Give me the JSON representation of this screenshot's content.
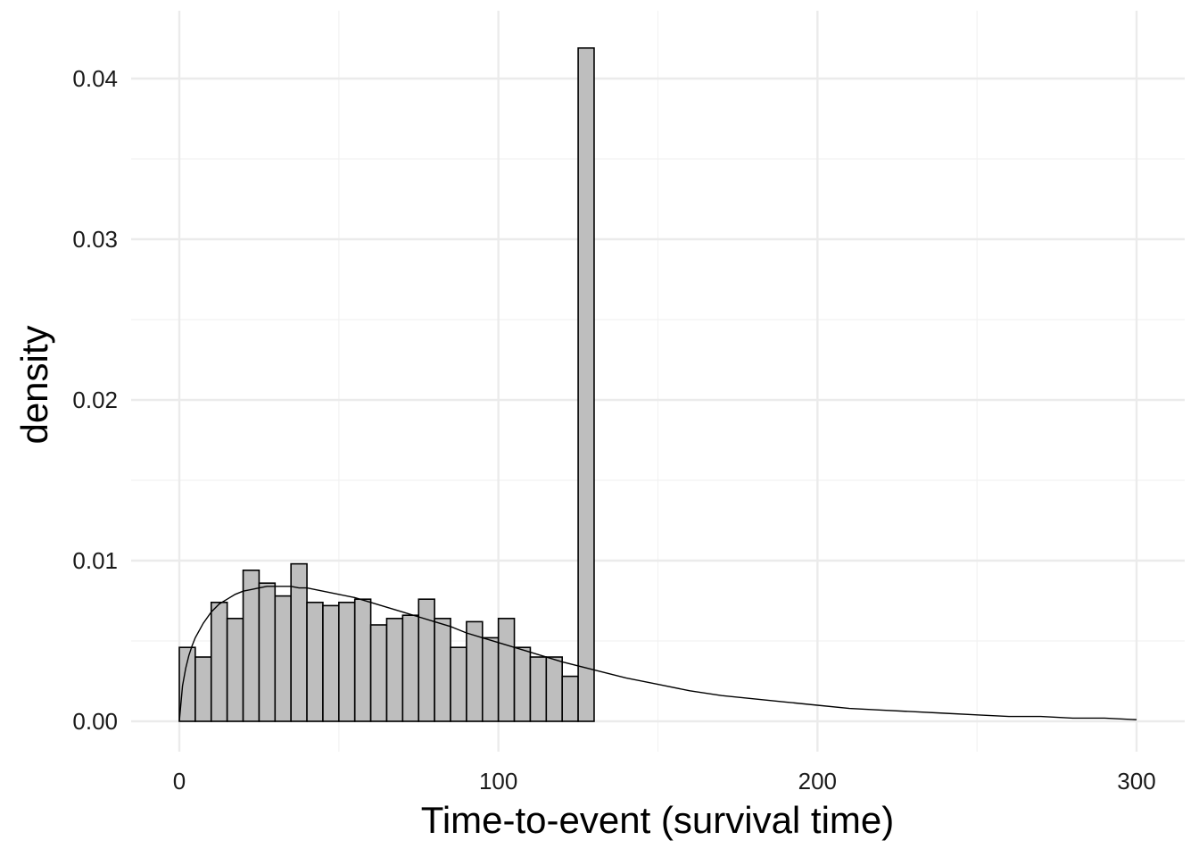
{
  "chart_data": {
    "type": "bar",
    "title": "",
    "xlabel": "Time-to-event (survival time)",
    "ylabel": "density",
    "xlim": [
      0,
      300
    ],
    "ylim": [
      0,
      0.042
    ],
    "x_ticks": [
      0,
      100,
      200,
      300
    ],
    "x_tick_labels": [
      "0",
      "100",
      "200",
      "300"
    ],
    "y_ticks": [
      0,
      0.01,
      0.02,
      0.03,
      0.04
    ],
    "y_tick_labels": [
      "0.00",
      "0.01",
      "0.02",
      "0.03",
      "0.04"
    ],
    "grid": true,
    "bin_width": 5,
    "histogram": {
      "bin_edges": [
        0,
        5,
        10,
        15,
        20,
        25,
        30,
        35,
        40,
        45,
        50,
        55,
        60,
        65,
        70,
        75,
        80,
        85,
        90,
        95,
        100,
        105,
        110,
        115,
        120,
        125,
        130
      ],
      "density": [
        0.0046,
        0.004,
        0.0074,
        0.0064,
        0.0094,
        0.0086,
        0.0078,
        0.0098,
        0.0074,
        0.0072,
        0.0074,
        0.0076,
        0.006,
        0.0064,
        0.0066,
        0.0076,
        0.0064,
        0.0046,
        0.0062,
        0.0052,
        0.0064,
        0.0046,
        0.004,
        0.004,
        0.0028,
        0.0419
      ]
    },
    "density_curve": {
      "x": [
        0,
        1,
        2,
        3,
        4,
        5,
        7.5,
        10,
        12.5,
        15,
        17.5,
        20,
        22.5,
        25,
        27.5,
        30,
        32.5,
        35,
        37.5,
        40,
        45,
        50,
        55,
        60,
        65,
        70,
        75,
        80,
        85,
        90,
        95,
        100,
        110,
        120,
        130,
        140,
        150,
        160,
        170,
        180,
        190,
        200,
        210,
        220,
        230,
        240,
        250,
        260,
        270,
        280,
        290,
        300
      ],
      "y": [
        0,
        0.0022,
        0.0033,
        0.0041,
        0.0047,
        0.0052,
        0.0061,
        0.0068,
        0.0073,
        0.0076,
        0.0079,
        0.0081,
        0.0082,
        0.0083,
        0.0084,
        0.0084,
        0.0084,
        0.0084,
        0.0083,
        0.0083,
        0.0081,
        0.0079,
        0.0077,
        0.0074,
        0.0071,
        0.0068,
        0.0065,
        0.0062,
        0.0059,
        0.0055,
        0.0052,
        0.0049,
        0.0043,
        0.0037,
        0.0032,
        0.0027,
        0.0023,
        0.0019,
        0.0016,
        0.0014,
        0.0012,
        0.001,
        0.0008,
        0.0007,
        0.0006,
        0.0005,
        0.0004,
        0.0003,
        0.0003,
        0.0002,
        0.0002,
        0.0001
      ]
    }
  }
}
